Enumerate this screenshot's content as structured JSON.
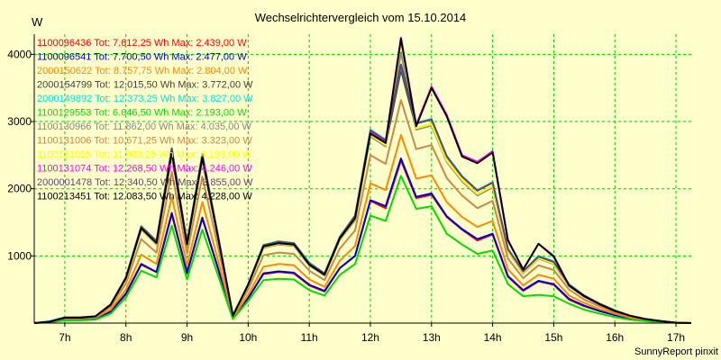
{
  "chart_data": {
    "type": "line",
    "title": "Wechselrichtervergleich vom 15.10.2014",
    "ylabel": "W",
    "credit": "SunnyReport pinxit",
    "xlim": [
      6.5,
      17.25
    ],
    "ylim": [
      0,
      4300
    ],
    "x_ticks": [
      {
        "value": 7,
        "label": "7h"
      },
      {
        "value": 8,
        "label": "8h"
      },
      {
        "value": 9,
        "label": "9h"
      },
      {
        "value": 10,
        "label": "10h"
      },
      {
        "value": 11,
        "label": "11h"
      },
      {
        "value": 12,
        "label": "12h"
      },
      {
        "value": 13,
        "label": "13h"
      },
      {
        "value": 14,
        "label": "14h"
      },
      {
        "value": 15,
        "label": "15h"
      },
      {
        "value": 16,
        "label": "16h"
      },
      {
        "value": 17,
        "label": "17h"
      }
    ],
    "y_ticks": [
      {
        "value": 1000,
        "label": "1000"
      },
      {
        "value": 2000,
        "label": "2000"
      },
      {
        "value": 3000,
        "label": "3000"
      },
      {
        "value": 4000,
        "label": "4000"
      }
    ],
    "grid": true,
    "legend_position": "top-left",
    "x": [
      6.5,
      6.75,
      7,
      7.25,
      7.5,
      7.75,
      8,
      8.25,
      8.5,
      8.75,
      9,
      9.25,
      9.5,
      9.75,
      10,
      10.25,
      10.5,
      10.75,
      11,
      11.25,
      11.5,
      11.75,
      12,
      12.25,
      12.5,
      12.75,
      13,
      13.25,
      13.5,
      13.75,
      14,
      14.25,
      14.5,
      14.75,
      15,
      15.25,
      15.5,
      15.75,
      16,
      16.25,
      16.5,
      16.75,
      17,
      17.25
    ],
    "series": [
      {
        "name": "1100096436 Tot: 7.612,25 Wh Max: 2.439,00 W",
        "color": "#ff0000",
        "values": [
          0,
          20,
          60,
          60,
          70,
          170,
          430,
          870,
          760,
          1620,
          740,
          1560,
          830,
          70,
          370,
          730,
          760,
          740,
          560,
          470,
          820,
          1000,
          1820,
          1710,
          2420,
          1860,
          1910,
          1580,
          1390,
          1230,
          1320,
          690,
          480,
          620,
          570,
          350,
          250,
          180,
          120,
          70,
          40,
          20,
          5,
          0
        ]
      },
      {
        "name": "1100096541 Tot: 7.700,50 Wh Max: 2.477,00 W",
        "color": "#0000cc",
        "values": [
          0,
          20,
          60,
          60,
          70,
          170,
          440,
          880,
          760,
          1640,
          750,
          1570,
          840,
          70,
          370,
          740,
          770,
          750,
          570,
          480,
          820,
          1000,
          1830,
          1740,
          2450,
          1880,
          1930,
          1590,
          1400,
          1250,
          1330,
          700,
          490,
          630,
          580,
          360,
          260,
          180,
          120,
          70,
          40,
          20,
          5,
          0
        ]
      },
      {
        "name": "2000150622 Tot: 8.757,75 Wh Max: 2.804,00 W",
        "color": "#ff8800",
        "values": [
          0,
          20,
          70,
          70,
          80,
          200,
          500,
          1020,
          880,
          1880,
          860,
          1800,
          960,
          80,
          420,
          840,
          880,
          860,
          650,
          540,
          930,
          1150,
          2080,
          1980,
          2800,
          2150,
          2200,
          1800,
          1580,
          1430,
          1520,
          800,
          560,
          720,
          660,
          410,
          300,
          210,
          140,
          80,
          50,
          20,
          5,
          0
        ]
      },
      {
        "name": "2000154799 Tot: 12.015,50 Wh Max: 3.772,00 W",
        "color": "#404040",
        "values": [
          0,
          20,
          80,
          80,
          100,
          270,
          660,
          1400,
          1180,
          2520,
          1160,
          2440,
          1300,
          110,
          560,
          1130,
          1180,
          1160,
          870,
          720,
          1250,
          1550,
          2800,
          2650,
          3770,
          2900,
          2960,
          2420,
          2130,
          1920,
          2040,
          1080,
          750,
          970,
          890,
          560,
          400,
          280,
          180,
          110,
          60,
          30,
          5,
          0
        ]
      },
      {
        "name": "2000149892 Tot: 12.373,25 Wh Max: 3.827,00 W",
        "color": "#00e0e0",
        "values": [
          0,
          30,
          90,
          90,
          100,
          280,
          680,
          1440,
          1220,
          2600,
          1200,
          2520,
          1340,
          110,
          580,
          1160,
          1220,
          1190,
          900,
          740,
          1290,
          1600,
          2880,
          2730,
          3830,
          2980,
          3040,
          2490,
          2190,
          1980,
          2100,
          1110,
          770,
          1000,
          920,
          580,
          410,
          290,
          190,
          110,
          60,
          30,
          5,
          0
        ]
      },
      {
        "name": "1100129553 Tot: 6.646,50 Wh Max: 2.193,00 W",
        "color": "#00dd00",
        "values": [
          0,
          10,
          40,
          40,
          50,
          140,
          380,
          780,
          680,
          1450,
          650,
          1390,
          730,
          60,
          330,
          640,
          660,
          650,
          490,
          410,
          720,
          880,
          1600,
          1520,
          2190,
          1700,
          1740,
          1330,
          1170,
          1030,
          1080,
          580,
          400,
          420,
          400,
          290,
          200,
          140,
          90,
          50,
          30,
          10,
          5,
          0
        ]
      },
      {
        "name": "1100130966 Tot: 11.862,00 Wh Max: 4.035,00 W",
        "color": "#888888",
        "values": [
          0,
          20,
          80,
          80,
          100,
          270,
          660,
          1390,
          1170,
          2500,
          1150,
          2420,
          1290,
          110,
          560,
          1120,
          1170,
          1150,
          860,
          710,
          1240,
          1530,
          2780,
          2630,
          4030,
          2880,
          2940,
          2400,
          2110,
          1900,
          2020,
          1070,
          740,
          960,
          880,
          550,
          390,
          280,
          180,
          110,
          60,
          30,
          5,
          0
        ]
      },
      {
        "name": "1100131006 Tot: 10.671,25 Wh Max: 3.323,00 W",
        "color": "#cc8844",
        "values": [
          0,
          20,
          70,
          70,
          90,
          240,
          590,
          1250,
          1050,
          2250,
          1030,
          2180,
          1160,
          100,
          500,
          1010,
          1050,
          1030,
          780,
          640,
          1110,
          1380,
          2500,
          2370,
          3320,
          2590,
          2650,
          2160,
          1900,
          1710,
          1820,
          960,
          670,
          860,
          790,
          500,
          350,
          250,
          160,
          100,
          60,
          30,
          5,
          0
        ]
      },
      {
        "name": "1100131025 Tot: 11.983,25 Wh Max: 4.193,00 W",
        "color": "#ffff00",
        "values": [
          0,
          20,
          80,
          80,
          100,
          270,
          660,
          1400,
          1180,
          2520,
          1160,
          2440,
          1300,
          110,
          560,
          1130,
          1180,
          1160,
          870,
          720,
          1250,
          1550,
          2800,
          2650,
          4190,
          2900,
          2960,
          2420,
          2130,
          1920,
          2040,
          1080,
          750,
          970,
          890,
          560,
          400,
          280,
          180,
          110,
          60,
          30,
          5,
          0
        ]
      },
      {
        "name": "1100131074 Tot: 12.268,50 Wh Max: 4.246,00 W",
        "color": "#ff00ff",
        "values": [
          0,
          20,
          80,
          80,
          100,
          280,
          670,
          1420,
          1200,
          2560,
          1180,
          2480,
          1320,
          110,
          570,
          1150,
          1200,
          1180,
          880,
          730,
          1270,
          1580,
          2850,
          2700,
          4250,
          2950,
          3520,
          3100,
          2500,
          2400,
          2560,
          1240,
          800,
          1180,
          1000,
          560,
          400,
          280,
          180,
          110,
          60,
          30,
          5,
          0
        ]
      },
      {
        "name": "2000001478 Tot: 12.340,50 Wh Max: 3.855,00 W",
        "color": "#664466",
        "values": [
          0,
          20,
          80,
          80,
          100,
          280,
          680,
          1440,
          1220,
          2600,
          1190,
          2510,
          1340,
          110,
          570,
          1160,
          1210,
          1190,
          890,
          740,
          1280,
          1600,
          2870,
          2720,
          3850,
          2970,
          3030,
          2480,
          2180,
          1970,
          2090,
          1100,
          770,
          990,
          910,
          570,
          410,
          290,
          190,
          110,
          60,
          30,
          5,
          0
        ]
      },
      {
        "name": "1100213451 Tot: 12.083,50 Wh Max: 4.228,00 W",
        "color": "#000000",
        "values": [
          0,
          20,
          80,
          80,
          100,
          270,
          670,
          1410,
          1190,
          2540,
          1170,
          2460,
          1310,
          110,
          570,
          1140,
          1190,
          1170,
          870,
          720,
          1260,
          1560,
          2820,
          2680,
          4230,
          2930,
          3500,
          3080,
          2480,
          2380,
          2540,
          1230,
          800,
          1180,
          990,
          560,
          400,
          280,
          180,
          110,
          60,
          30,
          5,
          0
        ]
      }
    ]
  }
}
